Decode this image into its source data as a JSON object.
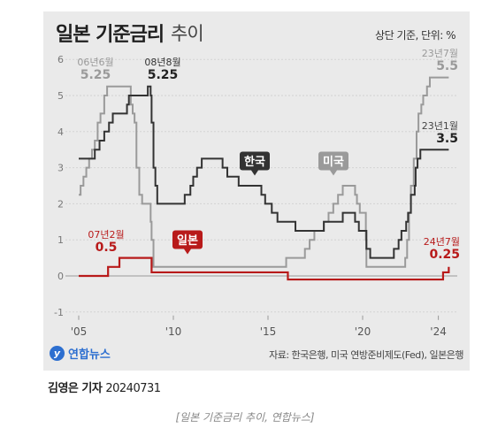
{
  "header": {
    "title_main": "일본 기준금리",
    "title_sub": "추이",
    "note": "상단 기준, 단위: %"
  },
  "chart_data": {
    "type": "line",
    "title": "일본 기준금리 추이",
    "ylim": [
      -1,
      6
    ],
    "yticks": [
      -1,
      0,
      1,
      2,
      3,
      4,
      5,
      6
    ],
    "xlim": [
      2004.9,
      2025.3
    ],
    "xticks": [
      {
        "value": 2005,
        "label": "'05"
      },
      {
        "value": 2010,
        "label": "'10"
      },
      {
        "value": 2015,
        "label": "'15"
      },
      {
        "value": 2020,
        "label": "'20"
      },
      {
        "value": 2024,
        "label": "'24"
      }
    ],
    "grid": true,
    "series": [
      {
        "name": "미국",
        "color": "#9a9a9a",
        "points": [
          [
            2005.0,
            2.25
          ],
          [
            2005.1,
            2.5
          ],
          [
            2005.25,
            2.75
          ],
          [
            2005.4,
            3.0
          ],
          [
            2005.55,
            3.25
          ],
          [
            2005.7,
            3.5
          ],
          [
            2005.85,
            3.75
          ],
          [
            2006.0,
            4.25
          ],
          [
            2006.15,
            4.5
          ],
          [
            2006.35,
            5.0
          ],
          [
            2006.5,
            5.25
          ],
          [
            2007.7,
            5.25
          ],
          [
            2007.75,
            4.75
          ],
          [
            2007.85,
            4.5
          ],
          [
            2007.95,
            4.25
          ],
          [
            2008.05,
            3.0
          ],
          [
            2008.2,
            2.25
          ],
          [
            2008.35,
            2.0
          ],
          [
            2008.8,
            1.5
          ],
          [
            2008.85,
            1.0
          ],
          [
            2008.95,
            0.25
          ],
          [
            2015.95,
            0.25
          ],
          [
            2015.96,
            0.5
          ],
          [
            2016.95,
            0.75
          ],
          [
            2017.2,
            1.0
          ],
          [
            2017.45,
            1.25
          ],
          [
            2017.95,
            1.5
          ],
          [
            2018.2,
            1.75
          ],
          [
            2018.45,
            2.0
          ],
          [
            2018.7,
            2.25
          ],
          [
            2018.95,
            2.5
          ],
          [
            2019.55,
            2.5
          ],
          [
            2019.6,
            2.25
          ],
          [
            2019.7,
            2.0
          ],
          [
            2019.85,
            1.75
          ],
          [
            2020.17,
            1.0
          ],
          [
            2020.2,
            0.25
          ],
          [
            2022.2,
            0.25
          ],
          [
            2022.25,
            0.5
          ],
          [
            2022.35,
            1.0
          ],
          [
            2022.45,
            1.75
          ],
          [
            2022.55,
            2.5
          ],
          [
            2022.7,
            3.25
          ],
          [
            2022.85,
            4.0
          ],
          [
            2022.95,
            4.5
          ],
          [
            2023.1,
            4.75
          ],
          [
            2023.2,
            5.0
          ],
          [
            2023.4,
            5.25
          ],
          [
            2023.55,
            5.5
          ],
          [
            2024.55,
            5.5
          ]
        ]
      },
      {
        "name": "한국",
        "color": "#333333",
        "points": [
          [
            2005.0,
            3.25
          ],
          [
            2005.8,
            3.25
          ],
          [
            2005.85,
            3.5
          ],
          [
            2006.1,
            3.75
          ],
          [
            2006.35,
            4.0
          ],
          [
            2006.6,
            4.25
          ],
          [
            2006.8,
            4.5
          ],
          [
            2007.55,
            4.75
          ],
          [
            2007.65,
            5.0
          ],
          [
            2008.6,
            5.0
          ],
          [
            2008.65,
            5.25
          ],
          [
            2008.8,
            5.0
          ],
          [
            2008.85,
            4.25
          ],
          [
            2008.95,
            3.0
          ],
          [
            2009.05,
            2.5
          ],
          [
            2009.15,
            2.0
          ],
          [
            2010.55,
            2.0
          ],
          [
            2010.6,
            2.25
          ],
          [
            2010.9,
            2.5
          ],
          [
            2011.05,
            2.75
          ],
          [
            2011.25,
            3.0
          ],
          [
            2011.5,
            3.25
          ],
          [
            2012.55,
            3.25
          ],
          [
            2012.6,
            3.0
          ],
          [
            2012.85,
            2.75
          ],
          [
            2013.45,
            2.5
          ],
          [
            2014.6,
            2.5
          ],
          [
            2014.65,
            2.25
          ],
          [
            2014.85,
            2.0
          ],
          [
            2015.2,
            1.75
          ],
          [
            2015.5,
            1.5
          ],
          [
            2016.45,
            1.25
          ],
          [
            2017.9,
            1.25
          ],
          [
            2017.95,
            1.5
          ],
          [
            2018.9,
            1.5
          ],
          [
            2018.95,
            1.75
          ],
          [
            2019.55,
            1.75
          ],
          [
            2019.6,
            1.5
          ],
          [
            2019.8,
            1.25
          ],
          [
            2020.2,
            0.75
          ],
          [
            2020.4,
            0.5
          ],
          [
            2021.6,
            0.5
          ],
          [
            2021.65,
            0.75
          ],
          [
            2021.9,
            1.0
          ],
          [
            2022.05,
            1.25
          ],
          [
            2022.3,
            1.5
          ],
          [
            2022.4,
            1.75
          ],
          [
            2022.55,
            2.25
          ],
          [
            2022.75,
            2.5
          ],
          [
            2022.8,
            3.0
          ],
          [
            2022.9,
            3.25
          ],
          [
            2023.05,
            3.5
          ],
          [
            2024.55,
            3.5
          ]
        ]
      },
      {
        "name": "일본",
        "color": "#b81a1a",
        "points": [
          [
            2005.0,
            0.0
          ],
          [
            2006.5,
            0.0
          ],
          [
            2006.55,
            0.25
          ],
          [
            2007.1,
            0.25
          ],
          [
            2007.15,
            0.5
          ],
          [
            2008.8,
            0.5
          ],
          [
            2008.85,
            0.1
          ],
          [
            2016.0,
            0.1
          ],
          [
            2016.05,
            -0.1
          ],
          [
            2024.2,
            -0.1
          ],
          [
            2024.25,
            0.1
          ],
          [
            2024.5,
            0.1
          ],
          [
            2024.55,
            0.25
          ]
        ]
      }
    ],
    "annotations": [
      {
        "date": "06년6월",
        "value": "5.25",
        "series": "미국"
      },
      {
        "date": "08년8월",
        "value": "5.25",
        "series": "한국"
      },
      {
        "date": "23년7월",
        "value": "5.5",
        "series": "미국"
      },
      {
        "date": "23년1월",
        "value": "3.5",
        "series": "한국"
      },
      {
        "date": "07년2월",
        "value": "0.5",
        "series": "일본"
      },
      {
        "date": "24년7월",
        "value": "0.25",
        "series": "일본"
      }
    ],
    "tags": [
      {
        "label": "한국",
        "color": "#333333"
      },
      {
        "label": "미국",
        "color": "#9a9a9a"
      },
      {
        "label": "일본",
        "color": "#b81a1a"
      }
    ]
  },
  "footer": {
    "logo_text": "연합뉴스",
    "source": "자료: 한국은행, 미국 연방준비제도(Fed), 일본은행",
    "byline_name": "김영은 기자",
    "byline_date": "20240731",
    "caption": "[일본 기준금리 추이, 연합뉴스]"
  }
}
